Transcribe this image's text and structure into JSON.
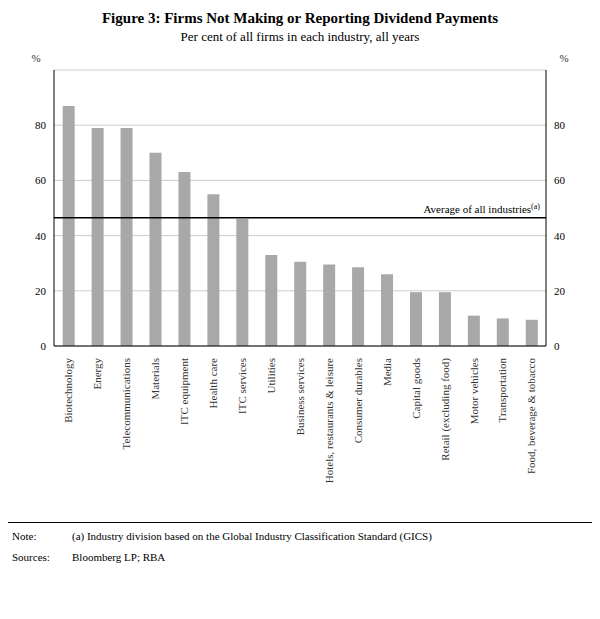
{
  "chart_data": {
    "type": "bar",
    "title": "Figure 3: Firms Not Making or Reporting Dividend Payments",
    "subtitle": "Per cent of all firms in each industry, all years",
    "categories": [
      "Biotechnology",
      "Energy",
      "Telecommunications",
      "Materials",
      "ITC equipment",
      "Health care",
      "ITC services",
      "Utilities",
      "Business services",
      "Hotels, restaurants & leisure",
      "Consumer durables",
      "Media",
      "Capital goods",
      "Retail (excluding food)",
      "Motor vehicles",
      "Transportation",
      "Food, beverage & tobacco"
    ],
    "values": [
      87,
      79,
      79,
      70,
      63,
      55,
      46,
      33,
      30.5,
      29.5,
      28.5,
      26,
      19.5,
      19.5,
      11,
      10,
      9.5
    ],
    "color": "#a8a8a8",
    "ylim": [
      0,
      100
    ],
    "yticks": [
      0,
      20,
      40,
      60,
      80
    ],
    "y2lim": [
      0,
      100
    ],
    "y2ticks": [
      0,
      20,
      40,
      60,
      80
    ],
    "ylabel": "%",
    "y2label": "%",
    "grid": true,
    "average_line": {
      "value": 46.5,
      "label": "Average of all industries",
      "label_superscript": "(a)"
    },
    "note_label": "Note:",
    "note": "(a) Industry division based on the Global Industry Classification Standard (GICS)",
    "sources_label": "Sources:",
    "sources": "Bloomberg LP; RBA"
  }
}
